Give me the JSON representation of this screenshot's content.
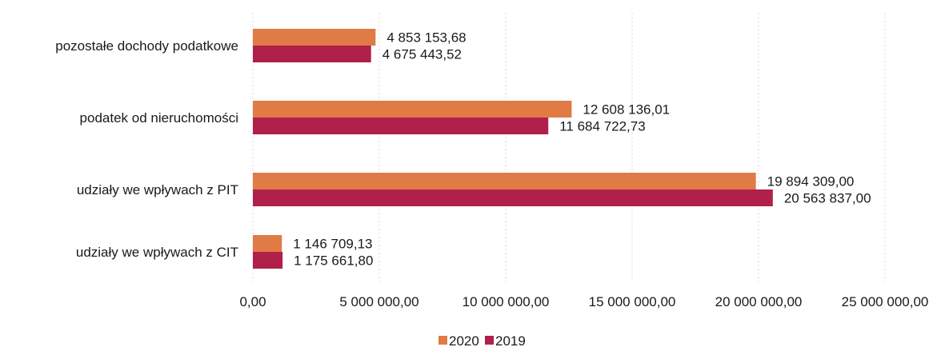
{
  "chart_data": {
    "type": "bar",
    "orientation": "horizontal",
    "categories": [
      "pozostałe dochody podatkowe",
      "podatek od nieruchomości",
      "udziały we wpływach z PIT",
      "udziały we wpływach z CIT"
    ],
    "series": [
      {
        "name": "2020",
        "color": "#e07b45",
        "values": [
          4853153.68,
          12608136.01,
          19894309.0,
          1146709.13
        ],
        "labels": [
          "4 853 153,68",
          "12 608 136,01",
          "19 894 309,00",
          "1 146 709,13"
        ]
      },
      {
        "name": "2019",
        "color": "#b0204a",
        "values": [
          4675443.52,
          11684722.73,
          20563837.0,
          1175661.8
        ],
        "labels": [
          "4 675 443,52",
          "11 684 722,73",
          "20 563 837,00",
          "1 175 661,80"
        ]
      }
    ],
    "xlim": [
      0,
      25000000
    ],
    "xticks": [
      0,
      5000000,
      10000000,
      15000000,
      20000000,
      25000000
    ],
    "xtick_labels": [
      "0,00",
      "5 000 000,00",
      "10 000 000,00",
      "15 000 000,00",
      "20 000 000,00",
      "25 000 000,00"
    ],
    "grid": true,
    "legend_position": "bottom"
  }
}
